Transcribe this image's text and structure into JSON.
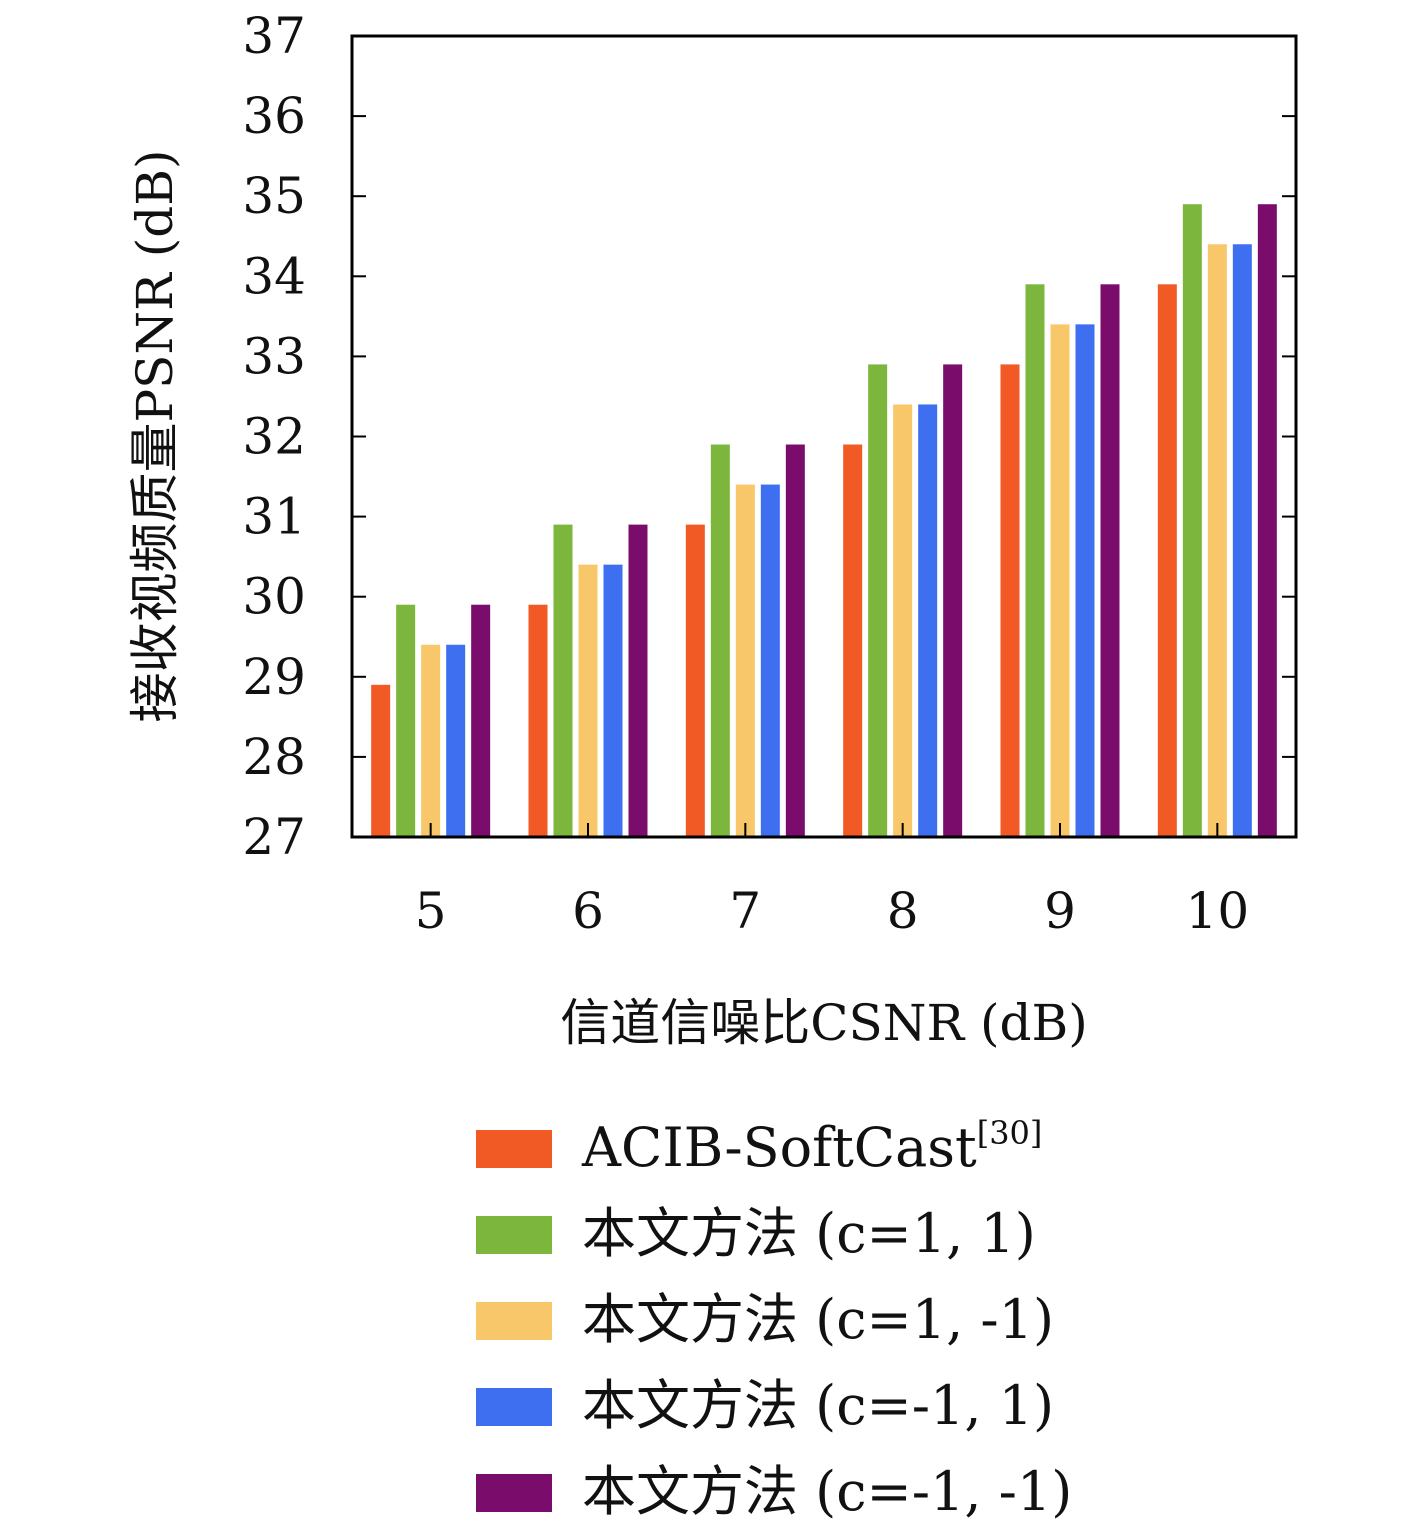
{
  "chart_data": {
    "type": "bar",
    "xlabel": "信道信噪比CSNR (dB)",
    "ylabel": "接收视频质量PSNR (dB)",
    "ylim": [
      27,
      37
    ],
    "yticks": [
      27,
      28,
      29,
      30,
      31,
      32,
      33,
      34,
      35,
      36,
      37
    ],
    "categories": [
      "5",
      "6",
      "7",
      "8",
      "9",
      "10"
    ],
    "legend_position": "bottom",
    "series": [
      {
        "name": "ACIB-SoftCast",
        "superscript": "[30]",
        "color": "#f15a24",
        "values": [
          28.9,
          29.9,
          30.9,
          31.9,
          32.9,
          33.9
        ]
      },
      {
        "name": "本文方法 (c=1, 1)",
        "color": "#7cb63c",
        "values": [
          29.9,
          30.9,
          31.9,
          32.9,
          33.9,
          34.9
        ]
      },
      {
        "name": "本文方法 (c=1, -1)",
        "color": "#f8c76a",
        "values": [
          29.4,
          30.4,
          31.4,
          32.4,
          33.4,
          34.4
        ]
      },
      {
        "name": "本文方法 (c=-1, 1)",
        "color": "#3d6ff0",
        "values": [
          29.4,
          30.4,
          31.4,
          32.4,
          33.4,
          34.4
        ]
      },
      {
        "name": "本文方法 (c=-1, -1)",
        "color": "#7a0c6c",
        "values": [
          29.9,
          30.9,
          31.9,
          32.9,
          33.9,
          34.9
        ]
      }
    ]
  }
}
